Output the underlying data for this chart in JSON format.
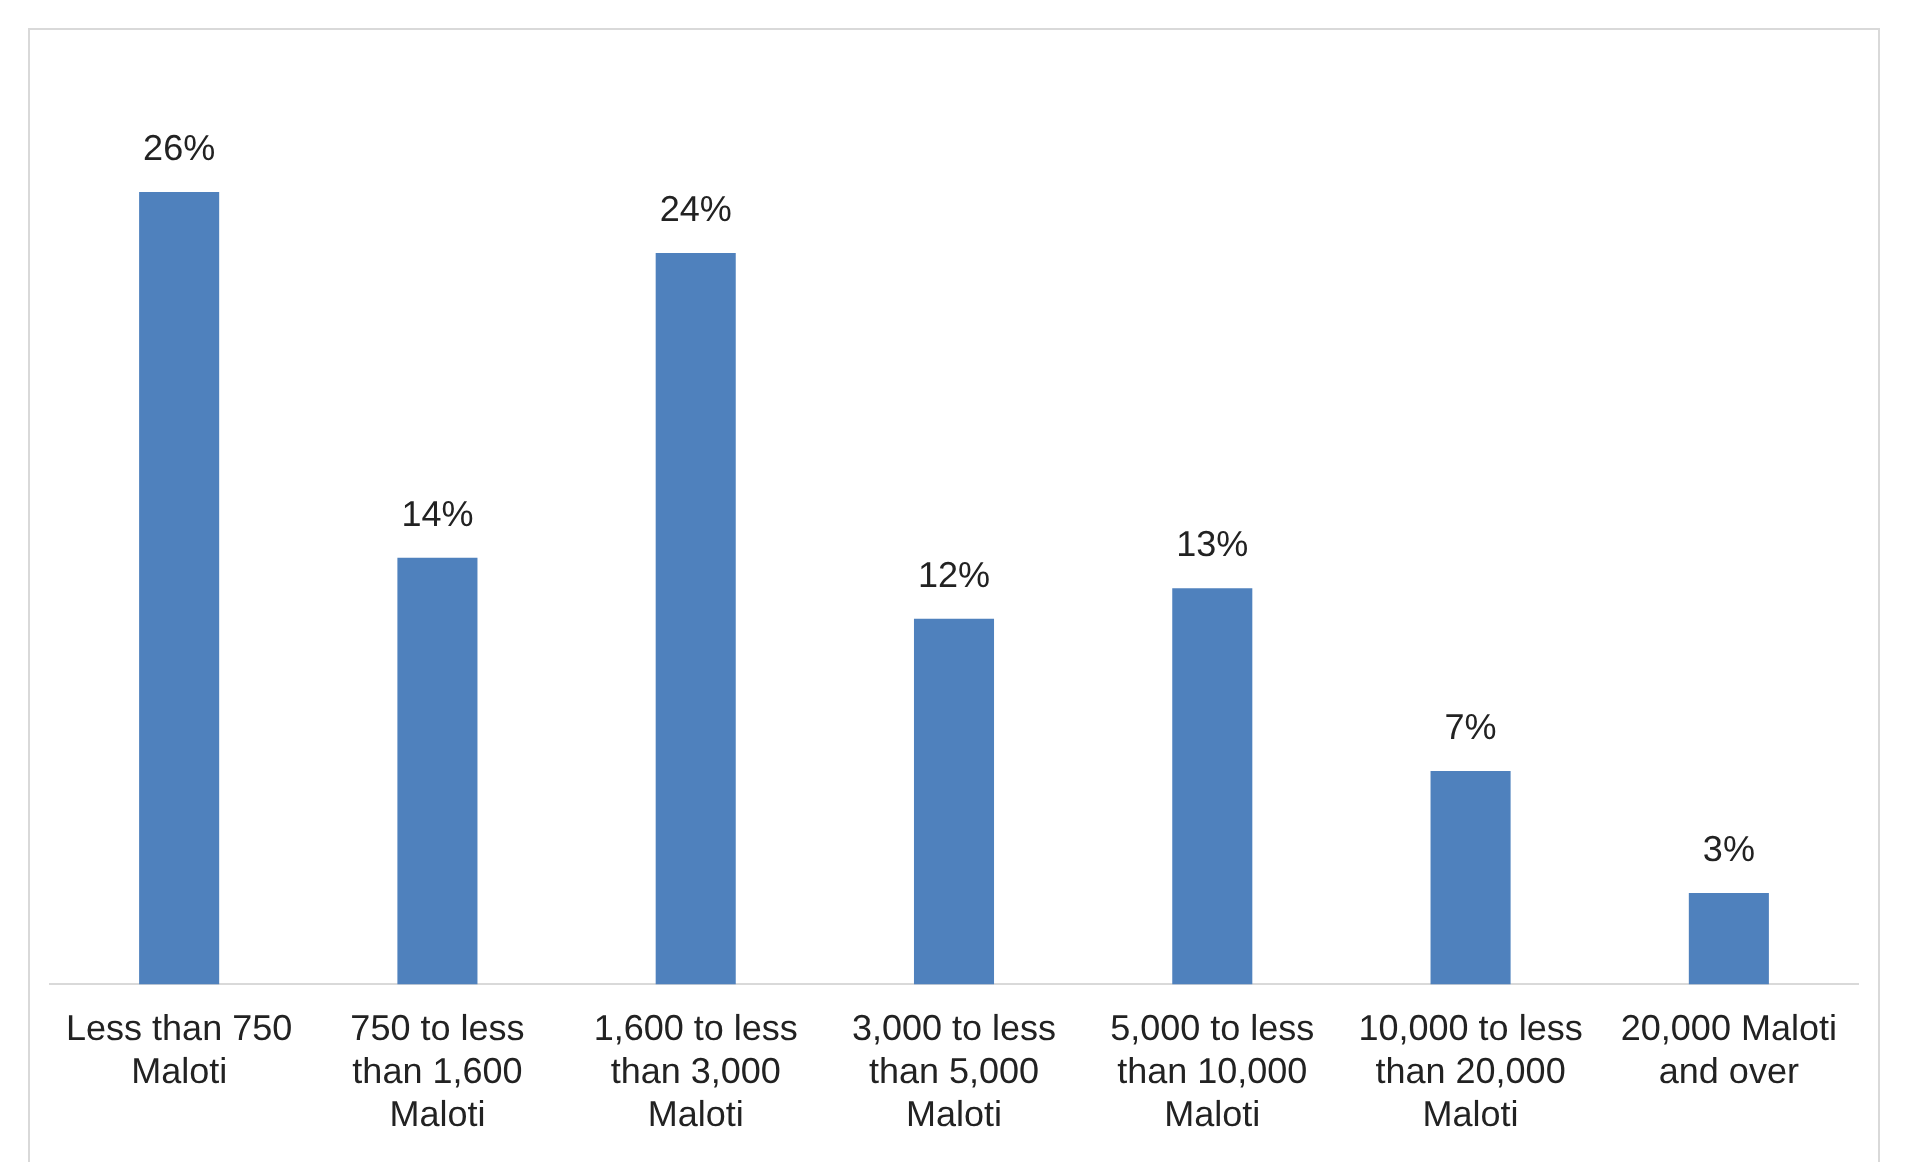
{
  "chart_data": {
    "type": "bar",
    "categories": [
      "Less than 750 Maloti",
      "750 to less than 1,600 Maloti",
      "1,600 to less than 3,000 Maloti",
      "3,000 to less than 5,000 Maloti",
      "5,000 to less than 10,000 Maloti",
      "10,000 to less than 20,000 Maloti",
      "20,000 Maloti and over"
    ],
    "values": [
      26,
      14,
      24,
      12,
      13,
      7,
      3
    ],
    "value_labels": [
      "26%",
      "14%",
      "24%",
      "12%",
      "13%",
      "7%",
      "3%"
    ],
    "color": "#4f81bd",
    "grid": false,
    "legend": false,
    "tick_labels": "x"
  }
}
